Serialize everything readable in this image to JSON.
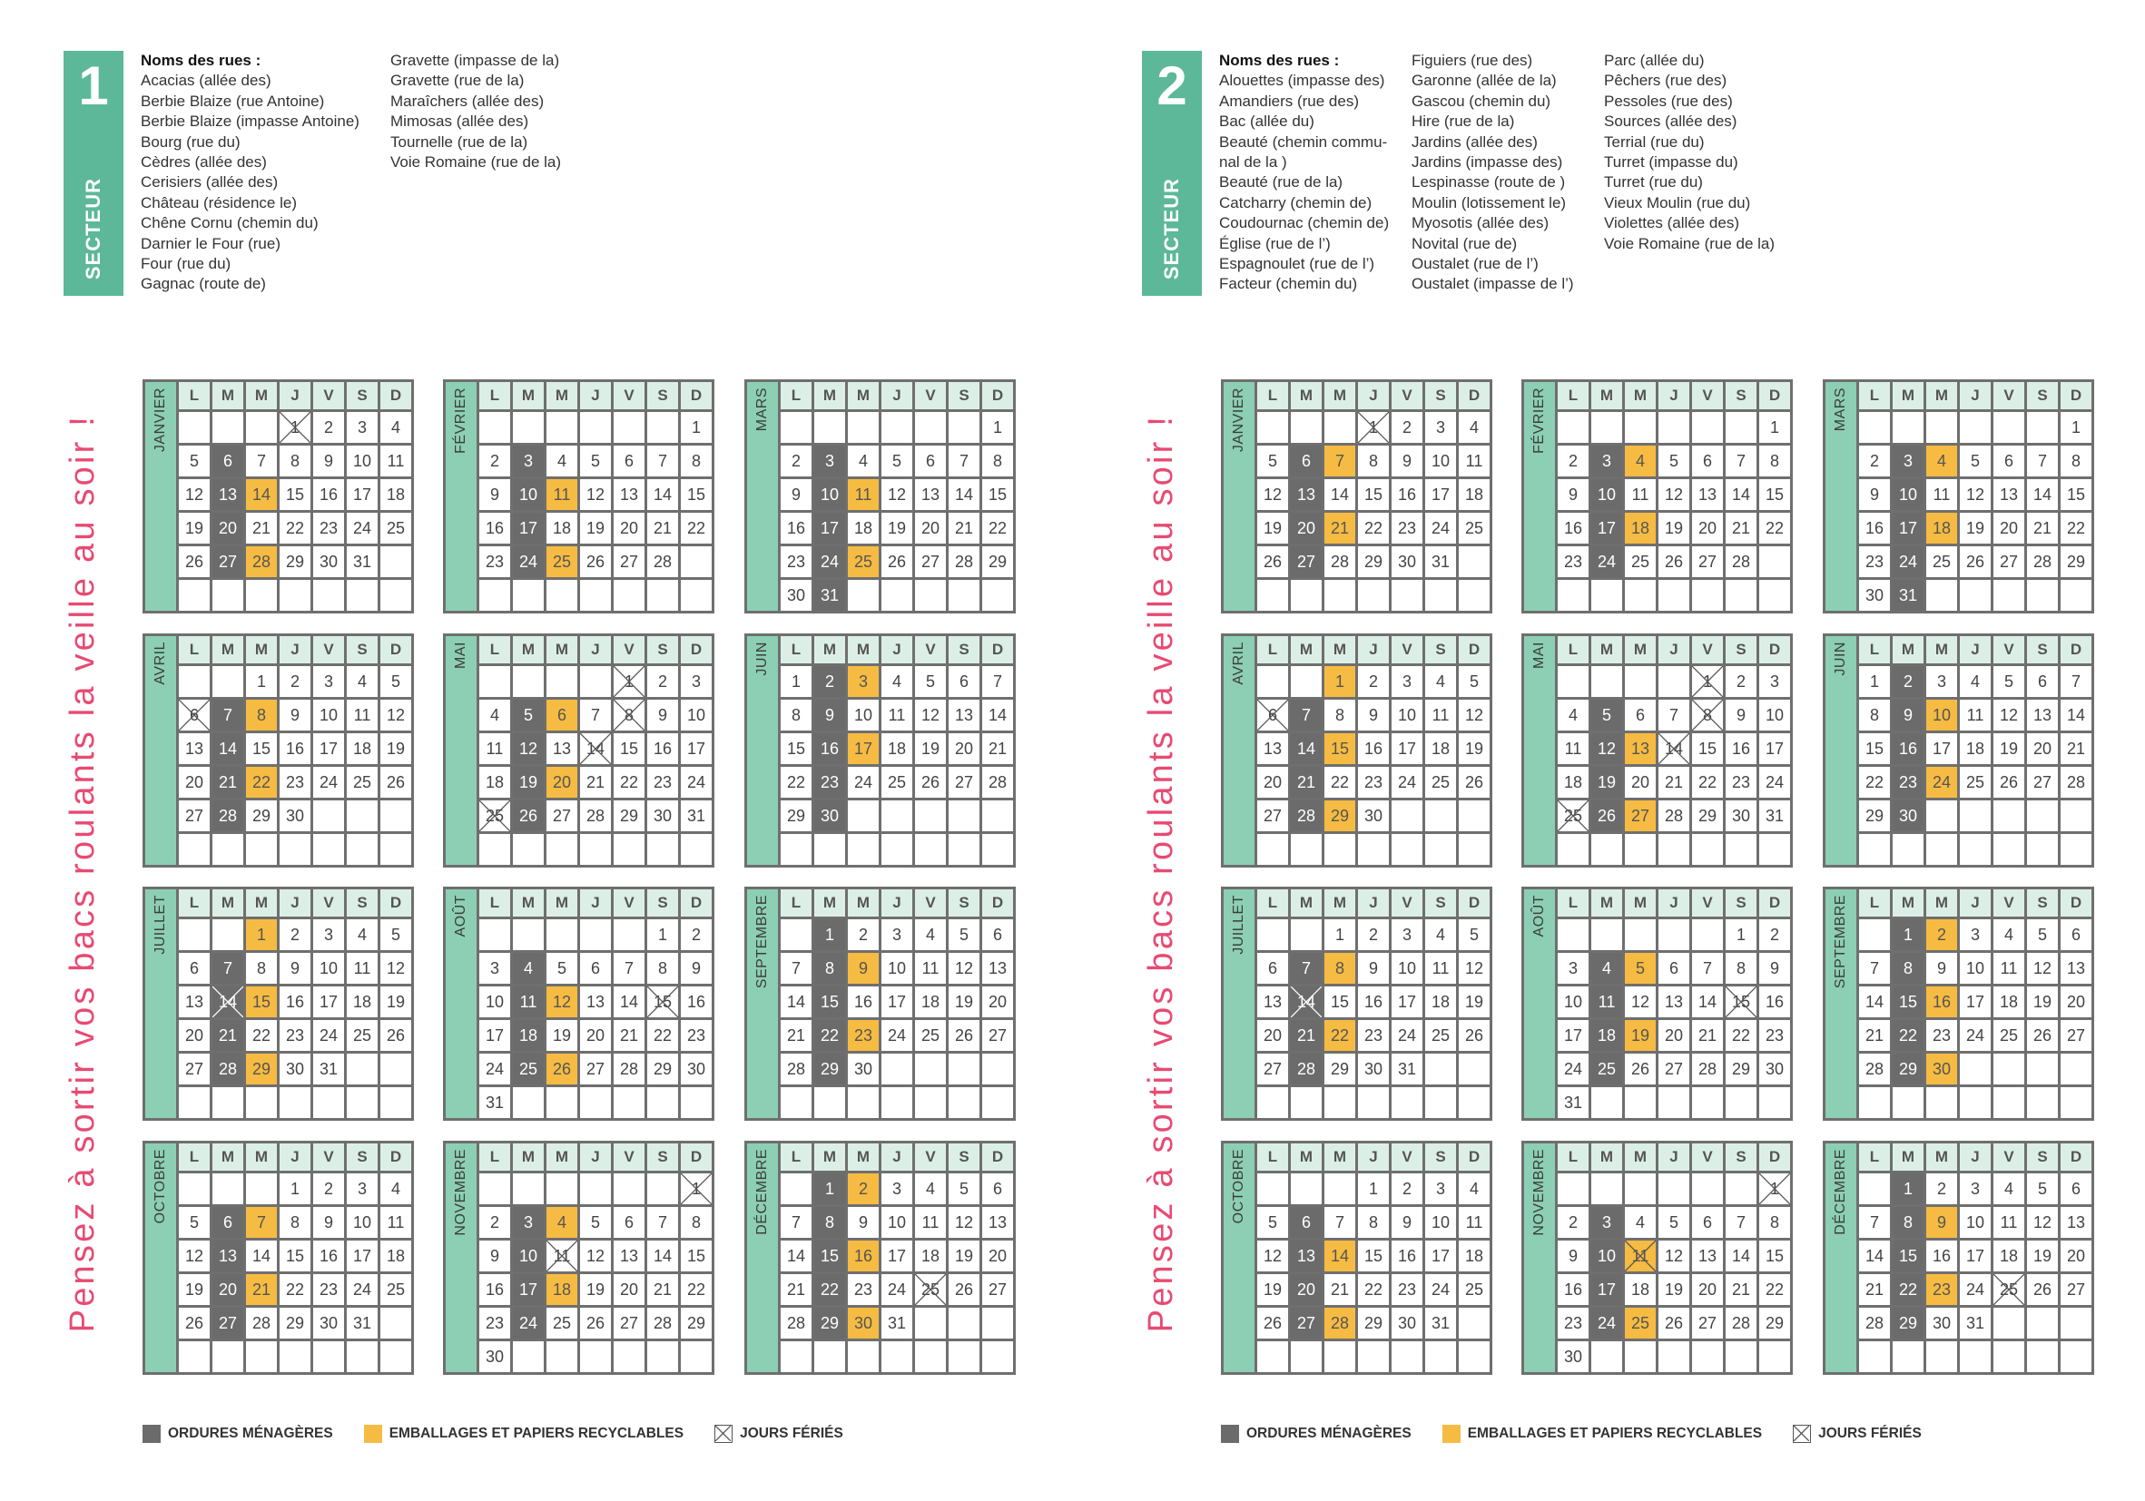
{
  "weekdays": [
    "L",
    "M",
    "M",
    "J",
    "V",
    "S",
    "D"
  ],
  "colors": {
    "tab": "#5cb899",
    "month_strip": "#8ccfb4",
    "ordures": "#6b6b6b",
    "emballages": "#f6bb42",
    "slogan": "#e84a72"
  },
  "sectors": [
    {
      "number": "1",
      "label": "SECTEUR",
      "streets_heading": "Noms des rues :",
      "street_columns": [
        [
          "Acacias (allée des)",
          "Berbie Blaize (rue Antoine)",
          "Berbie Blaize (impasse Antoine)",
          "Bourg (rue du)",
          "Cèdres (allée des)",
          "Cerisiers (allée des)",
          "Château (résidence le)",
          "Chêne Cornu (chemin du)",
          "Darnier le Four (rue)",
          "Four (rue du)",
          "Gagnac (route de)"
        ],
        [
          "Gravette (impasse de la)",
          "Gravette (rue de la)",
          "Maraîchers (allée des)",
          "Mimosas (allée des)",
          "Tournelle (rue de la)",
          "Voie Romaine (rue de la)"
        ]
      ],
      "slogan": "Pensez à sortir vos bacs roulants la veille au soir !",
      "months": [
        {
          "name": "JANVIER",
          "start": 3,
          "days": 31,
          "grey": [
            6,
            13,
            20,
            27
          ],
          "yellow": [
            14,
            28
          ],
          "holidays": [
            1
          ]
        },
        {
          "name": "FÉVRIER",
          "start": 6,
          "days": 28,
          "grey": [
            3,
            10,
            17,
            24
          ],
          "yellow": [
            11,
            25
          ],
          "holidays": []
        },
        {
          "name": "MARS",
          "start": 6,
          "days": 31,
          "grey": [
            3,
            10,
            17,
            24,
            31
          ],
          "yellow": [
            11,
            25
          ],
          "holidays": []
        },
        {
          "name": "AVRIL",
          "start": 2,
          "days": 30,
          "grey": [
            7,
            14,
            21,
            28
          ],
          "yellow": [
            8,
            22
          ],
          "holidays": [
            6
          ]
        },
        {
          "name": "MAI",
          "start": 4,
          "days": 31,
          "grey": [
            5,
            12,
            19,
            26
          ],
          "yellow": [
            6,
            20
          ],
          "holidays": [
            1,
            8,
            14,
            25
          ]
        },
        {
          "name": "JUIN",
          "start": 0,
          "days": 30,
          "grey": [
            2,
            9,
            16,
            23,
            30
          ],
          "yellow": [
            3,
            17
          ],
          "holidays": []
        },
        {
          "name": "JUILLET",
          "start": 2,
          "days": 31,
          "grey": [
            7,
            14,
            21,
            28
          ],
          "yellow": [
            1,
            15,
            29
          ],
          "holidays": [
            14
          ]
        },
        {
          "name": "AOÛT",
          "start": 5,
          "days": 31,
          "grey": [
            4,
            11,
            18,
            25
          ],
          "yellow": [
            12,
            26
          ],
          "holidays": [
            15
          ]
        },
        {
          "name": "SEPTEMBRE",
          "start": 1,
          "days": 30,
          "grey": [
            1,
            8,
            15,
            22,
            29
          ],
          "yellow": [
            9,
            23
          ],
          "holidays": []
        },
        {
          "name": "OCTOBRE",
          "start": 3,
          "days": 31,
          "grey": [
            6,
            13,
            20,
            27
          ],
          "yellow": [
            7,
            21
          ],
          "holidays": []
        },
        {
          "name": "NOVEMBRE",
          "start": 6,
          "days": 30,
          "grey": [
            3,
            10,
            17,
            24
          ],
          "yellow": [
            4,
            18
          ],
          "holidays": [
            1,
            11
          ]
        },
        {
          "name": "DÉCEMBRE",
          "start": 1,
          "days": 31,
          "grey": [
            1,
            8,
            15,
            22,
            29
          ],
          "yellow": [
            2,
            16,
            30
          ],
          "holidays": [
            25
          ]
        }
      ],
      "legend": {
        "ordures": "ORDURES MÉNAGÈRES",
        "emballages": "EMBALLAGES ET PAPIERS RECYCLABLES",
        "feries": "JOURS FÉRIÉS"
      }
    },
    {
      "number": "2",
      "label": "SECTEUR",
      "streets_heading": "Noms des rues :",
      "street_columns": [
        [
          "Alouettes (impasse des)",
          "Amandiers (rue des)",
          "Bac (allée du)",
          "Beauté (chemin commu-",
          "nal de la )",
          "Beauté (rue de la)",
          "Catcharry (chemin de)",
          "Coudournac (chemin de)",
          "Église (rue de l’)",
          "Espagnoulet (rue de l’)",
          "Facteur (chemin du)"
        ],
        [
          "Figuiers (rue des)",
          "Garonne (allée de la)",
          "Gascou (chemin du)",
          "Hire (rue de la)",
          "Jardins (allée des)",
          "Jardins (impasse des)",
          "Lespinasse (route de )",
          "Moulin (lotissement le)",
          "Myosotis (allée des)",
          "Novital (rue de)",
          "Oustalet (rue de l’)",
          "Oustalet (impasse de l’)"
        ],
        [
          "Parc (allée du)",
          "Pêchers (rue des)",
          "Pessoles (rue des)",
          "Sources (allée des)",
          "Terrial (rue du)",
          "Turret (impasse du)",
          "Turret (rue du)",
          "Vieux Moulin (rue du)",
          "Violettes (allée des)",
          "Voie Romaine (rue de la)"
        ]
      ],
      "slogan": "Pensez à sortir vos bacs roulants la veille au soir !",
      "months": [
        {
          "name": "JANVIER",
          "start": 3,
          "days": 31,
          "grey": [
            6,
            13,
            20,
            27
          ],
          "yellow": [
            7,
            21
          ],
          "holidays": [
            1
          ]
        },
        {
          "name": "FÉVRIER",
          "start": 6,
          "days": 28,
          "grey": [
            3,
            10,
            17,
            24
          ],
          "yellow": [
            4,
            18
          ],
          "holidays": []
        },
        {
          "name": "MARS",
          "start": 6,
          "days": 31,
          "grey": [
            3,
            10,
            17,
            24,
            31
          ],
          "yellow": [
            4,
            18
          ],
          "holidays": []
        },
        {
          "name": "AVRIL",
          "start": 2,
          "days": 30,
          "grey": [
            7,
            14,
            21,
            28
          ],
          "yellow": [
            1,
            15,
            29
          ],
          "holidays": [
            6
          ]
        },
        {
          "name": "MAI",
          "start": 4,
          "days": 31,
          "grey": [
            5,
            12,
            19,
            26
          ],
          "yellow": [
            13,
            27
          ],
          "holidays": [
            1,
            8,
            14,
            25
          ]
        },
        {
          "name": "JUIN",
          "start": 0,
          "days": 30,
          "grey": [
            2,
            9,
            16,
            23,
            30
          ],
          "yellow": [
            10,
            24
          ],
          "holidays": []
        },
        {
          "name": "JUILLET",
          "start": 2,
          "days": 31,
          "grey": [
            7,
            14,
            21,
            28
          ],
          "yellow": [
            8,
            22
          ],
          "holidays": [
            14
          ]
        },
        {
          "name": "AOÛT",
          "start": 5,
          "days": 31,
          "grey": [
            4,
            11,
            18,
            25
          ],
          "yellow": [
            5,
            19
          ],
          "holidays": [
            15
          ]
        },
        {
          "name": "SEPTEMBRE",
          "start": 1,
          "days": 30,
          "grey": [
            1,
            8,
            15,
            22,
            29
          ],
          "yellow": [
            2,
            16,
            30
          ],
          "holidays": []
        },
        {
          "name": "OCTOBRE",
          "start": 3,
          "days": 31,
          "grey": [
            6,
            13,
            20,
            27
          ],
          "yellow": [
            14,
            28
          ],
          "holidays": []
        },
        {
          "name": "NOVEMBRE",
          "start": 6,
          "days": 30,
          "grey": [
            3,
            10,
            17,
            24
          ],
          "yellow": [
            11,
            25
          ],
          "holidays": [
            1,
            11
          ]
        },
        {
          "name": "DÉCEMBRE",
          "start": 1,
          "days": 31,
          "grey": [
            1,
            8,
            15,
            22,
            29
          ],
          "yellow": [
            9,
            23
          ],
          "holidays": [
            25
          ]
        }
      ],
      "legend": {
        "ordures": "ORDURES MÉNAGÈRES",
        "emballages": "EMBALLAGES ET PAPIERS RECYCLABLES",
        "feries": "JOURS FÉRIÉS"
      }
    }
  ]
}
